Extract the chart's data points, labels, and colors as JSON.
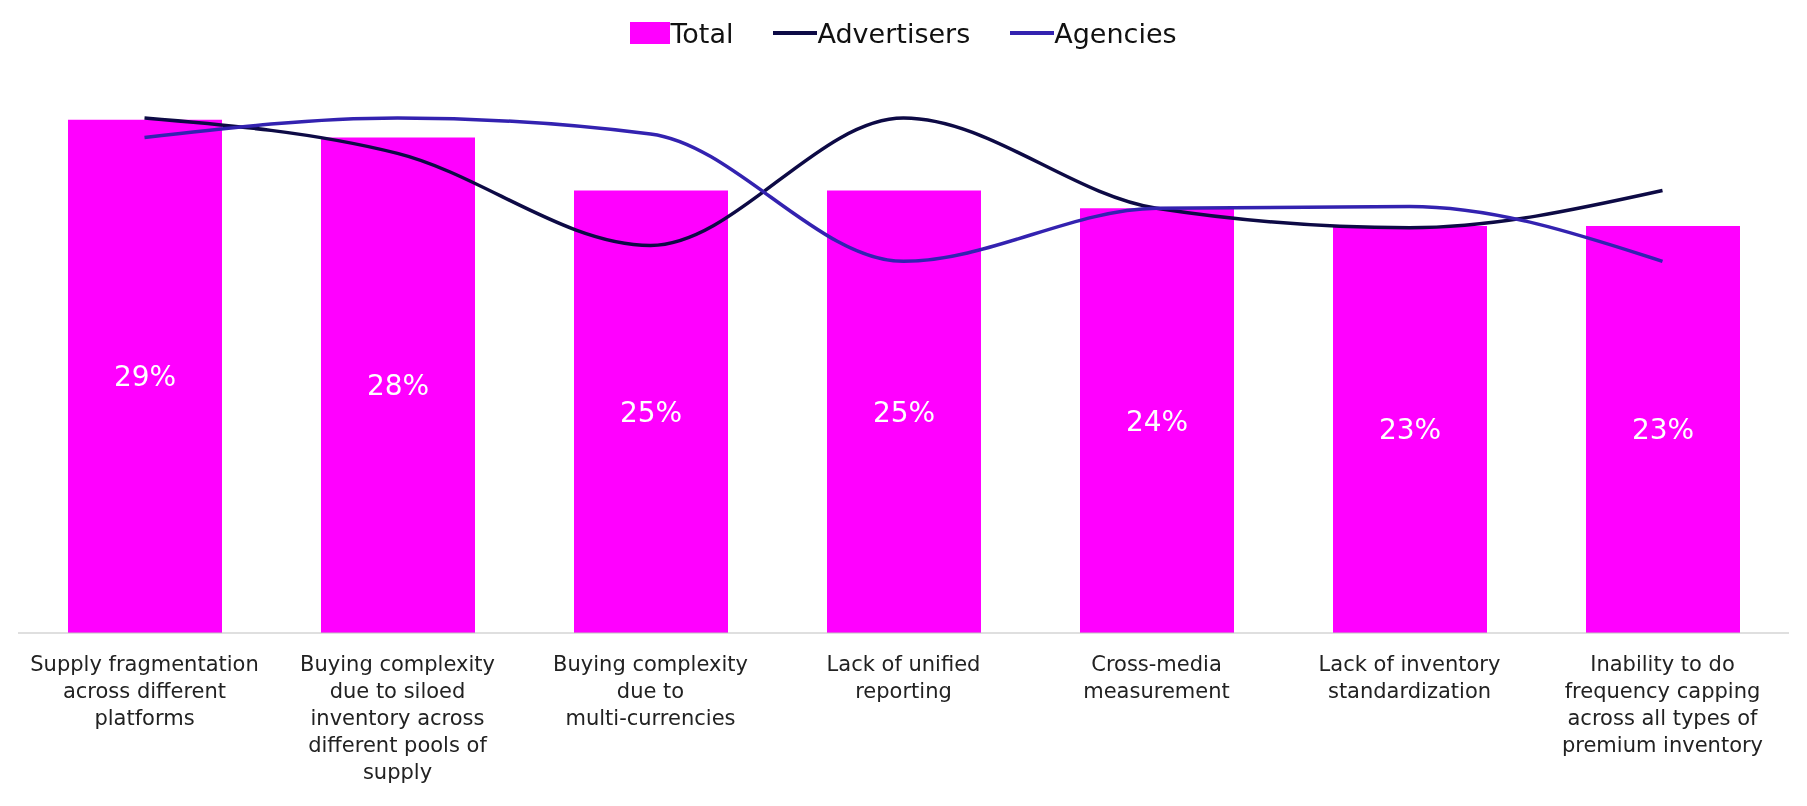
{
  "chart_data": {
    "type": "bar",
    "categories": [
      "Supply fragmentation across different platforms",
      "Buying complexity due to siloed inventory across different pools of supply",
      "Buying complexity due to multi-currencies",
      "Lack of unified reporting",
      "Cross-media measurement",
      "Lack of inventory standardization",
      "Inability to do frequency capping across all types of premium inventory"
    ],
    "series": [
      {
        "name": "Total",
        "color": "#ff00ff",
        "values": [
          29,
          28,
          25,
          25,
          24,
          23,
          23
        ],
        "value_labels": [
          "29%",
          "28%",
          "25%",
          "25%",
          "24%",
          "23%",
          "23%"
        ]
      },
      {
        "name": "Advertisers",
        "type": "line",
        "color": "#0d0a45",
        "values": [
          29.1,
          27.1,
          21.9,
          29.1,
          24.0,
          22.9,
          25.0
        ]
      },
      {
        "name": "Agencies",
        "type": "line",
        "color": "#3322b0",
        "values": [
          28.0,
          29.1,
          28.2,
          21.0,
          24.0,
          24.1,
          21.0
        ]
      }
    ],
    "legend": "top"
  }
}
